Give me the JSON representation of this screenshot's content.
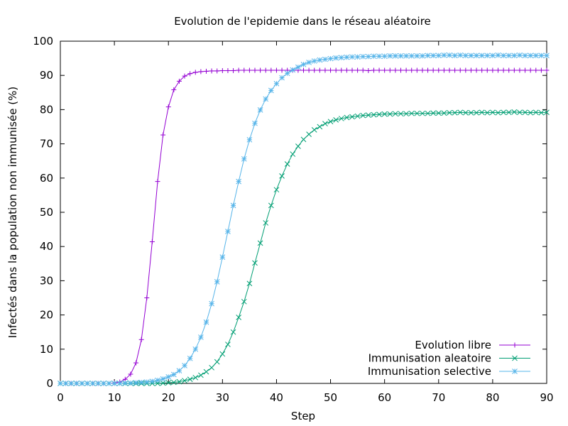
{
  "chart_data": {
    "type": "line",
    "title": "Evolution de l'epidemie dans le réseau aléatoire",
    "xlabel": "Step",
    "ylabel": "Infectés dans la population non immunisée (%)",
    "xlim": [
      0,
      90
    ],
    "ylim": [
      0,
      100
    ],
    "xticks": [
      "0",
      "10",
      "20",
      "30",
      "40",
      "50",
      "60",
      "70",
      "80",
      "90"
    ],
    "yticks": [
      "0",
      "10",
      "20",
      "30",
      "40",
      "50",
      "60",
      "70",
      "80",
      "90",
      "100"
    ],
    "grid": false,
    "legend_position": "bottom-right",
    "series": [
      {
        "name": "Evolution libre",
        "color": "#9400d3",
        "marker": "plus",
        "x": [
          0,
          1,
          2,
          3,
          4,
          5,
          6,
          7,
          8,
          9,
          10,
          11,
          12,
          13,
          14,
          15,
          16,
          17,
          18,
          19,
          20,
          21,
          22,
          23,
          24,
          25,
          26,
          27,
          28,
          29,
          30,
          31,
          32,
          33,
          34,
          35,
          36,
          37,
          38,
          39,
          40,
          41,
          42,
          43,
          44,
          45,
          46,
          47,
          48,
          49,
          50,
          51,
          52,
          53,
          54,
          55,
          56,
          57,
          58,
          59,
          60,
          61,
          62,
          63,
          64,
          65,
          66,
          67,
          68,
          69,
          70,
          71,
          72,
          73,
          74,
          75,
          76,
          77,
          78,
          79,
          80,
          81,
          82,
          83,
          84,
          85,
          86,
          87,
          88,
          89,
          90
        ],
        "y": [
          0,
          0,
          0,
          0,
          0,
          0,
          0,
          0,
          0,
          0,
          0.1,
          0.4,
          1.2,
          2.7,
          6.0,
          12.8,
          25.0,
          41.4,
          59.0,
          72.6,
          80.8,
          85.8,
          88.3,
          89.8,
          90.5,
          90.9,
          91.1,
          91.2,
          91.3,
          91.3,
          91.4,
          91.4,
          91.4,
          91.5,
          91.5,
          91.5,
          91.5,
          91.5,
          91.5,
          91.5,
          91.5,
          91.5,
          91.5,
          91.5,
          91.5,
          91.5,
          91.5,
          91.5,
          91.5,
          91.5,
          91.5,
          91.5,
          91.5,
          91.5,
          91.5,
          91.5,
          91.5,
          91.4,
          91.5,
          91.5,
          91.5,
          91.5,
          91.5,
          91.5,
          91.5,
          91.5,
          91.5,
          91.5,
          91.5,
          91.5,
          91.5,
          91.5,
          91.5,
          91.5,
          91.5,
          91.5,
          91.5,
          91.5,
          91.5,
          91.5,
          91.5,
          91.5,
          91.5,
          91.5,
          91.5,
          91.5,
          91.5,
          91.5,
          91.5,
          91.5,
          91.5
        ]
      },
      {
        "name": "Immunisation aleatoire",
        "color": "#009e73",
        "marker": "cross",
        "x": [
          0,
          1,
          2,
          3,
          4,
          5,
          6,
          7,
          8,
          9,
          10,
          11,
          12,
          13,
          14,
          15,
          16,
          17,
          18,
          19,
          20,
          21,
          22,
          23,
          24,
          25,
          26,
          27,
          28,
          29,
          30,
          31,
          32,
          33,
          34,
          35,
          36,
          37,
          38,
          39,
          40,
          41,
          42,
          43,
          44,
          45,
          46,
          47,
          48,
          49,
          50,
          51,
          52,
          53,
          54,
          55,
          56,
          57,
          58,
          59,
          60,
          61,
          62,
          63,
          64,
          65,
          66,
          67,
          68,
          69,
          70,
          71,
          72,
          73,
          74,
          75,
          76,
          77,
          78,
          79,
          80,
          81,
          82,
          83,
          84,
          85,
          86,
          87,
          88,
          89,
          90
        ],
        "y": [
          0,
          0,
          0,
          0,
          0,
          0,
          0,
          0,
          0,
          0,
          0,
          0,
          0,
          0,
          0,
          0,
          0,
          0,
          0,
          0.1,
          0.2,
          0.3,
          0.5,
          0.8,
          1.2,
          1.7,
          2.4,
          3.4,
          4.6,
          6.3,
          8.6,
          11.4,
          15.0,
          19.3,
          23.9,
          29.2,
          35.2,
          41.0,
          46.9,
          52.0,
          56.6,
          60.6,
          64.1,
          67.0,
          69.3,
          71.3,
          72.8,
          74.1,
          75.0,
          75.9,
          76.5,
          77.0,
          77.4,
          77.7,
          77.9,
          78.1,
          78.3,
          78.4,
          78.5,
          78.6,
          78.7,
          78.7,
          78.8,
          78.8,
          78.8,
          78.9,
          78.9,
          78.9,
          78.9,
          79.0,
          79.0,
          79.0,
          79.1,
          79.1,
          79.2,
          79.1,
          79.1,
          79.1,
          79.2,
          79.1,
          79.2,
          79.1,
          79.2,
          79.2,
          79.3,
          79.2,
          79.2,
          79.1,
          79.2,
          79.1,
          79.2
        ]
      },
      {
        "name": "Immunisation selective",
        "color": "#56b4e9",
        "marker": "star",
        "x": [
          0,
          1,
          2,
          3,
          4,
          5,
          6,
          7,
          8,
          9,
          10,
          11,
          12,
          13,
          14,
          15,
          16,
          17,
          18,
          19,
          20,
          21,
          22,
          23,
          24,
          25,
          26,
          27,
          28,
          29,
          30,
          31,
          32,
          33,
          34,
          35,
          36,
          37,
          38,
          39,
          40,
          41,
          42,
          43,
          44,
          45,
          46,
          47,
          48,
          49,
          50,
          51,
          52,
          53,
          54,
          55,
          56,
          57,
          58,
          59,
          60,
          61,
          62,
          63,
          64,
          65,
          66,
          67,
          68,
          69,
          70,
          71,
          72,
          73,
          74,
          75,
          76,
          77,
          78,
          79,
          80,
          81,
          82,
          83,
          84,
          85,
          86,
          87,
          88,
          89,
          90
        ],
        "y": [
          0,
          0,
          0,
          0,
          0,
          0,
          0,
          0,
          0,
          0,
          0,
          0,
          0.1,
          0.1,
          0.2,
          0.3,
          0.4,
          0.6,
          0.9,
          1.3,
          1.9,
          2.6,
          3.7,
          5.2,
          7.3,
          10.0,
          13.5,
          17.9,
          23.3,
          29.7,
          36.9,
          44.4,
          52.0,
          59.0,
          65.6,
          71.2,
          76.0,
          79.9,
          83.1,
          85.6,
          87.6,
          89.3,
          90.6,
          91.6,
          92.4,
          93.2,
          93.8,
          94.2,
          94.5,
          94.7,
          94.9,
          95.1,
          95.2,
          95.3,
          95.4,
          95.4,
          95.5,
          95.5,
          95.6,
          95.6,
          95.6,
          95.7,
          95.7,
          95.7,
          95.7,
          95.7,
          95.7,
          95.7,
          95.8,
          95.8,
          95.8,
          95.9,
          95.9,
          95.8,
          95.9,
          95.8,
          95.8,
          95.8,
          95.8,
          95.8,
          95.8,
          95.9,
          95.8,
          95.8,
          95.8,
          95.9,
          95.8,
          95.8,
          95.8,
          95.8,
          95.8
        ]
      }
    ]
  }
}
